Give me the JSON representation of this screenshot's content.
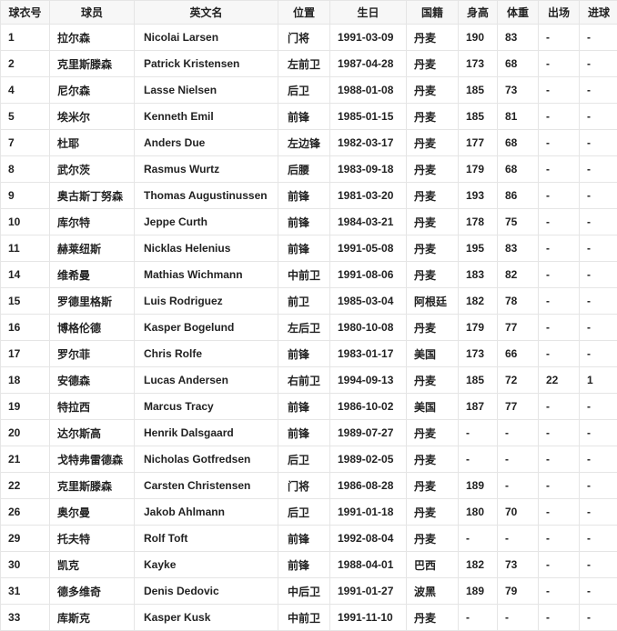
{
  "headers": [
    "球衣号",
    "球员",
    "英文名",
    "位置",
    "生日",
    "国籍",
    "身高",
    "体重",
    "出场",
    "进球"
  ],
  "rows": [
    [
      "1",
      "拉尔森",
      "Nicolai Larsen",
      "门将",
      "1991-03-09",
      "丹麦",
      "190",
      "83",
      "-",
      "-"
    ],
    [
      "2",
      "克里斯滕森",
      "Patrick Kristensen",
      "左前卫",
      "1987-04-28",
      "丹麦",
      "173",
      "68",
      "-",
      "-"
    ],
    [
      "4",
      "尼尔森",
      "Lasse Nielsen",
      "后卫",
      "1988-01-08",
      "丹麦",
      "185",
      "73",
      "-",
      "-"
    ],
    [
      "5",
      "埃米尔",
      "Kenneth Emil",
      "前锋",
      "1985-01-15",
      "丹麦",
      "185",
      "81",
      "-",
      "-"
    ],
    [
      "7",
      "杜耶",
      "Anders Due",
      "左边锋",
      "1982-03-17",
      "丹麦",
      "177",
      "68",
      "-",
      "-"
    ],
    [
      "8",
      "武尔茨",
      "Rasmus Wurtz",
      "后腰",
      "1983-09-18",
      "丹麦",
      "179",
      "68",
      "-",
      "-"
    ],
    [
      "9",
      "奥古斯丁努森",
      "Thomas Augustinussen",
      "前锋",
      "1981-03-20",
      "丹麦",
      "193",
      "86",
      "-",
      "-"
    ],
    [
      "10",
      "库尔特",
      "Jeppe Curth",
      "前锋",
      "1984-03-21",
      "丹麦",
      "178",
      "75",
      "-",
      "-"
    ],
    [
      "11",
      "赫莱纽斯",
      "Nicklas Helenius",
      "前锋",
      "1991-05-08",
      "丹麦",
      "195",
      "83",
      "-",
      "-"
    ],
    [
      "14",
      "维希曼",
      "Mathias Wichmann",
      "中前卫",
      "1991-08-06",
      "丹麦",
      "183",
      "82",
      "-",
      "-"
    ],
    [
      "15",
      "罗德里格斯",
      "Luis Rodriguez",
      "前卫",
      "1985-03-04",
      "阿根廷",
      "182",
      "78",
      "-",
      "-"
    ],
    [
      "16",
      "博格伦德",
      "Kasper Bogelund",
      "左后卫",
      "1980-10-08",
      "丹麦",
      "179",
      "77",
      "-",
      "-"
    ],
    [
      "17",
      "罗尔菲",
      "Chris Rolfe",
      "前锋",
      "1983-01-17",
      "美国",
      "173",
      "66",
      "-",
      "-"
    ],
    [
      "18",
      "安德森",
      "Lucas Andersen",
      "右前卫",
      "1994-09-13",
      "丹麦",
      "185",
      "72",
      "22",
      "1"
    ],
    [
      "19",
      "特拉西",
      "Marcus Tracy",
      "前锋",
      "1986-10-02",
      "美国",
      "187",
      "77",
      "-",
      "-"
    ],
    [
      "20",
      "达尔斯高",
      "Henrik Dalsgaard",
      "前锋",
      "1989-07-27",
      "丹麦",
      "-",
      "-",
      "-",
      "-"
    ],
    [
      "21",
      "戈特弗雷德森",
      "Nicholas Gotfredsen",
      "后卫",
      "1989-02-05",
      "丹麦",
      "-",
      "-",
      "-",
      "-"
    ],
    [
      "22",
      "克里斯滕森",
      "Carsten Christensen",
      "门将",
      "1986-08-28",
      "丹麦",
      "189",
      "-",
      "-",
      "-"
    ],
    [
      "26",
      "奥尔曼",
      "Jakob Ahlmann",
      "后卫",
      "1991-01-18",
      "丹麦",
      "180",
      "70",
      "-",
      "-"
    ],
    [
      "29",
      "托夫特",
      "Rolf Toft",
      "前锋",
      "1992-08-04",
      "丹麦",
      "-",
      "-",
      "-",
      "-"
    ],
    [
      "30",
      "凯克",
      "Kayke",
      "前锋",
      "1988-04-01",
      "巴西",
      "182",
      "73",
      "-",
      "-"
    ],
    [
      "31",
      "德多维奇",
      "Denis Dedovic",
      "中后卫",
      "1991-01-27",
      "波黑",
      "189",
      "79",
      "-",
      "-"
    ],
    [
      "33",
      "库斯克",
      "Kasper Kusk",
      "中前卫",
      "1991-11-10",
      "丹麦",
      "-",
      "-",
      "-",
      "-"
    ]
  ]
}
